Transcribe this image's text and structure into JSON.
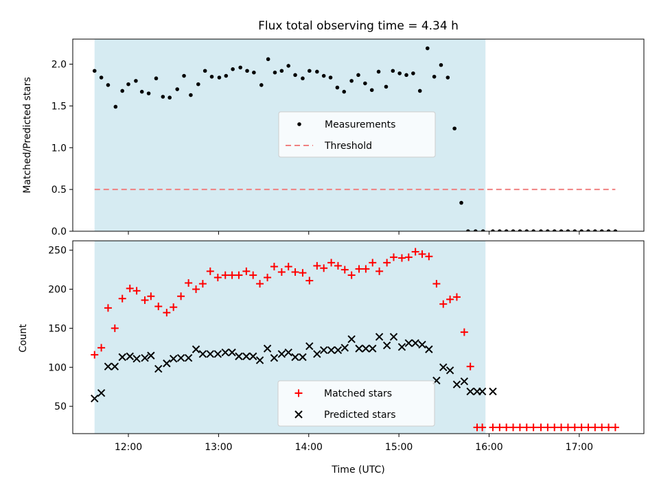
{
  "figure": {
    "title": "Flux total observing time = 4.34 h"
  },
  "chart_data": [
    {
      "type": "scatter",
      "ylabel": "Matched/Predicted stars",
      "ylim": [
        0,
        2.3
      ],
      "yticks": [
        0.0,
        0.5,
        1.0,
        1.5,
        2.0
      ],
      "ytick_labels": [
        "0.0",
        "0.5",
        "1.0",
        "1.5",
        "2.0"
      ],
      "xlim_hours": [
        11.3833,
        17.7167
      ],
      "shaded_span_hours": [
        11.625,
        15.96
      ],
      "shaded_color": "#add8e6",
      "threshold": {
        "name": "Threshold",
        "value": 0.5,
        "x_hours": [
          11.625,
          17.4
        ],
        "color": "#f08080"
      },
      "legend": {
        "placement": "center",
        "entries": [
          "Measurements",
          "Threshold"
        ]
      },
      "series": [
        {
          "name": "Measurements",
          "marker": "dot",
          "color": "#000000",
          "x_hours": [
            11.625,
            11.7,
            11.775,
            11.858,
            11.933,
            12.0,
            12.083,
            12.15,
            12.225,
            12.308,
            12.383,
            12.458,
            12.542,
            12.617,
            12.692,
            12.775,
            12.85,
            12.925,
            13.008,
            13.083,
            13.158,
            13.242,
            13.317,
            13.392,
            13.475,
            13.55,
            13.625,
            13.7,
            13.775,
            13.85,
            13.933,
            14.008,
            14.092,
            14.167,
            14.242,
            14.317,
            14.392,
            14.475,
            14.55,
            14.625,
            14.7,
            14.775,
            14.858,
            14.933,
            15.008,
            15.083,
            15.158,
            15.233,
            15.317,
            15.392,
            15.467,
            15.542,
            15.617,
            15.692,
            15.767,
            15.85,
            15.933,
            16.042,
            16.117,
            16.192,
            16.267,
            16.342,
            16.417,
            16.492,
            16.575,
            16.65,
            16.725,
            16.8,
            16.875,
            16.95,
            17.025,
            17.1,
            17.175,
            17.25,
            17.325,
            17.4
          ],
          "values": [
            1.92,
            1.84,
            1.75,
            1.49,
            1.68,
            1.76,
            1.8,
            1.67,
            1.65,
            1.83,
            1.61,
            1.6,
            1.7,
            1.86,
            1.63,
            1.76,
            1.92,
            1.85,
            1.84,
            1.86,
            1.94,
            1.96,
            1.92,
            1.9,
            1.75,
            2.06,
            1.9,
            1.92,
            1.98,
            1.87,
            1.83,
            1.92,
            1.91,
            1.86,
            1.84,
            1.72,
            1.67,
            1.8,
            1.87,
            1.77,
            1.69,
            1.91,
            1.73,
            1.92,
            1.89,
            1.87,
            1.89,
            1.68,
            2.19,
            1.85,
            1.99,
            1.84,
            1.23,
            0.34,
            0,
            0,
            0,
            0,
            0,
            0,
            0,
            0,
            0,
            0,
            0,
            0,
            0,
            0,
            0,
            0,
            0,
            0,
            0,
            0,
            0,
            0
          ]
        }
      ]
    },
    {
      "type": "scatter",
      "xlabel": "Time (UTC)",
      "ylabel": "Count",
      "ylim": [
        15,
        262
      ],
      "yticks": [
        50,
        100,
        150,
        200,
        250
      ],
      "ytick_labels": [
        "50",
        "100",
        "150",
        "200",
        "250"
      ],
      "xlim_hours": [
        11.3833,
        17.7167
      ],
      "xticks_hours": [
        12,
        13,
        14,
        15,
        16,
        17
      ],
      "xtick_labels": [
        "12:00",
        "13:00",
        "14:00",
        "15:00",
        "16:00",
        "17:00"
      ],
      "shaded_span_hours": [
        11.625,
        15.96
      ],
      "shaded_color": "#add8e6",
      "legend": {
        "placement": "lower center",
        "entries": [
          "Matched stars",
          "Predicted stars"
        ]
      },
      "series": [
        {
          "name": "Matched stars",
          "marker": "plus",
          "color": "#ff0000",
          "x_hours": [
            11.625,
            11.7,
            11.775,
            11.85,
            11.933,
            12.017,
            12.092,
            12.183,
            12.25,
            12.333,
            12.425,
            12.5,
            12.583,
            12.667,
            12.75,
            12.825,
            12.908,
            12.992,
            13.075,
            13.15,
            13.225,
            13.308,
            13.383,
            13.458,
            13.542,
            13.617,
            13.7,
            13.775,
            13.85,
            13.933,
            14.008,
            14.092,
            14.167,
            14.25,
            14.325,
            14.4,
            14.475,
            14.558,
            14.633,
            14.708,
            14.783,
            14.867,
            14.942,
            15.033,
            15.108,
            15.183,
            15.258,
            15.333,
            15.417,
            15.492,
            15.567,
            15.642,
            15.725,
            15.792,
            15.867,
            15.925,
            16.042,
            16.117,
            16.192,
            16.267,
            16.342,
            16.417,
            16.492,
            16.575,
            16.65,
            16.725,
            16.8,
            16.875,
            16.95,
            17.025,
            17.1,
            17.175,
            17.25,
            17.325,
            17.4
          ],
          "values": [
            116,
            125,
            176,
            150,
            188,
            201,
            198,
            186,
            191,
            178,
            170,
            177,
            191,
            208,
            200,
            207,
            223,
            215,
            218,
            218,
            218,
            223,
            218,
            207,
            215,
            229,
            222,
            229,
            222,
            221,
            211,
            230,
            227,
            234,
            230,
            225,
            218,
            226,
            226,
            234,
            223,
            234,
            241,
            240,
            241,
            248,
            245,
            242,
            207,
            181,
            187,
            190,
            145,
            101,
            23,
            23,
            23,
            23,
            23,
            23,
            23,
            23,
            23,
            23,
            23,
            23,
            23,
            23,
            23,
            23,
            23,
            23,
            23,
            23,
            23
          ]
        },
        {
          "name": "Predicted stars",
          "marker": "x",
          "color": "#000000",
          "x_hours": [
            11.625,
            11.7,
            11.775,
            11.85,
            11.933,
            12.017,
            12.092,
            12.183,
            12.25,
            12.333,
            12.425,
            12.5,
            12.583,
            12.667,
            12.75,
            12.825,
            12.908,
            12.992,
            13.075,
            13.15,
            13.225,
            13.308,
            13.383,
            13.458,
            13.542,
            13.617,
            13.7,
            13.775,
            13.85,
            13.933,
            14.008,
            14.092,
            14.167,
            14.25,
            14.325,
            14.4,
            14.475,
            14.558,
            14.633,
            14.708,
            14.783,
            14.867,
            14.942,
            15.033,
            15.108,
            15.183,
            15.258,
            15.333,
            15.417,
            15.492,
            15.567,
            15.642,
            15.725,
            15.792,
            15.867,
            15.925,
            16.042
          ],
          "values": [
            60,
            67,
            101,
            101,
            113,
            114,
            111,
            112,
            115,
            98,
            105,
            111,
            112,
            112,
            123,
            117,
            117,
            117,
            119,
            119,
            114,
            114,
            114,
            109,
            124,
            112,
            117,
            119,
            113,
            113,
            127,
            117,
            122,
            122,
            122,
            125,
            136,
            124,
            124,
            124,
            139,
            128,
            139,
            126,
            131,
            131,
            129,
            123,
            83,
            100,
            96,
            78,
            82,
            69,
            69,
            69,
            69
          ]
        }
      ]
    }
  ]
}
